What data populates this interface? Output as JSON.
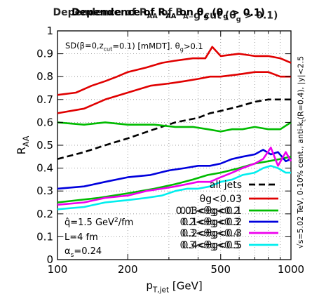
{
  "chart_data": {
    "type": "line",
    "title_parts": [
      "Dependence of R",
      "AA",
      " on θ",
      "g",
      " (θ",
      "g",
      " > 0.1)"
    ],
    "title_overlay_parts": [
      "Dependence of R",
      "AA",
      " of B",
      "A",
      "₋",
      "g",
      " cut (θ",
      "g",
      " > 0.1)"
    ],
    "xlabel": {
      "main": "p",
      "sub": "T,jet",
      "rest": " [GeV]"
    },
    "ylabel": {
      "main": "R",
      "sub": "AA"
    },
    "xscale": "log",
    "xlim": [
      100,
      1000
    ],
    "ylim": [
      0,
      1
    ],
    "xticks": [
      100,
      200,
      500,
      1000
    ],
    "xtick_labels": [
      "100",
      "200",
      "500",
      "1000"
    ],
    "yticks": [
      0,
      0.1,
      0.2,
      0.3,
      0.4,
      0.5,
      0.6,
      0.7,
      0.8,
      0.9,
      1
    ],
    "ytick_labels": [
      "0",
      "0.1",
      "0.2",
      "0.3",
      "0.4",
      "0.5",
      "0.6",
      "0.7",
      "0.8",
      "0.9",
      "1"
    ],
    "grid": true,
    "grouper_label": {
      "pre": "SD(β=0,z",
      "sub": "cut",
      "post": "=0.1) [mMDT]. θ",
      "sub2": "g",
      "post2": ">0.1"
    },
    "params": [
      {
        "pre": "q̂=1.5 GeV",
        "sup": "2",
        "post": "/fm"
      },
      {
        "pre": "L=4 fm",
        "sup": "",
        "post": ""
      },
      {
        "pre": "α",
        "sub": "s",
        "post": "=0.24"
      }
    ],
    "side_label": "√s=5.02 TeV, 0-10% cent., anti-k",
    "side_label_sub": "t",
    "side_label_post": "(R=0.4), |y|<2.5",
    "legend_position": "bottom-right",
    "legend": [
      {
        "label": "all jets",
        "color": "#000000",
        "dashed": true
      },
      {
        "label": "θg<0.03",
        "color": "#e00000",
        "dashed": false
      },
      {
        "label": "0.03<θg<0.1",
        "overlay": "0.1<θg<0.2",
        "color": "#00bb00",
        "dashed": false
      },
      {
        "label": "0.1<θg<0.2",
        "overlay": "0.2<θg<0.3",
        "color": "#0000dd",
        "dashed": false
      },
      {
        "label": "0.2<θg<0.3",
        "overlay": "0.3<θg<0.4",
        "color": "#ee00ee",
        "dashed": false
      },
      {
        "label": "0.4<θg<0.5",
        "overlay": "0.3<θg<0.5",
        "color": "#00eeee",
        "dashed": false
      }
    ],
    "series": [
      {
        "color": "#000000",
        "dashed": true,
        "x": [
          100,
          130,
          160,
          200,
          260,
          320,
          400,
          450,
          500,
          600,
          700,
          800,
          900,
          1000
        ],
        "y": [
          0.44,
          0.47,
          0.5,
          0.53,
          0.57,
          0.6,
          0.62,
          0.64,
          0.65,
          0.67,
          0.69,
          0.7,
          0.7,
          0.7
        ]
      },
      {
        "color": "#e00000",
        "dashed": false,
        "x": [
          100,
          120,
          140,
          160,
          180,
          200,
          240,
          280,
          320,
          380,
          430,
          460,
          500,
          600,
          700,
          800,
          900,
          1000
        ],
        "y": [
          0.72,
          0.73,
          0.76,
          0.78,
          0.8,
          0.82,
          0.84,
          0.86,
          0.87,
          0.88,
          0.88,
          0.93,
          0.89,
          0.9,
          0.89,
          0.89,
          0.88,
          0.86
        ]
      },
      {
        "color": "#e00000",
        "dashed": false,
        "x": [
          100,
          130,
          160,
          200,
          250,
          300,
          350,
          400,
          450,
          500,
          600,
          700,
          800,
          900,
          1000
        ],
        "y": [
          0.64,
          0.66,
          0.7,
          0.73,
          0.76,
          0.77,
          0.78,
          0.79,
          0.8,
          0.8,
          0.81,
          0.82,
          0.82,
          0.8,
          0.8
        ]
      },
      {
        "color": "#00bb00",
        "dashed": false,
        "x": [
          100,
          130,
          160,
          200,
          260,
          320,
          380,
          440,
          500,
          560,
          620,
          700,
          800,
          900,
          1000
        ],
        "y": [
          0.6,
          0.59,
          0.6,
          0.59,
          0.59,
          0.58,
          0.58,
          0.57,
          0.56,
          0.57,
          0.57,
          0.58,
          0.57,
          0.57,
          0.6
        ]
      },
      {
        "color": "#00bb00",
        "dashed": false,
        "x": [
          100,
          150,
          200,
          260,
          320,
          380,
          440,
          500,
          600,
          700,
          800,
          900,
          1000
        ],
        "y": [
          0.25,
          0.27,
          0.29,
          0.31,
          0.33,
          0.35,
          0.37,
          0.38,
          0.4,
          0.42,
          0.43,
          0.44,
          0.45
        ]
      },
      {
        "color": "#0000dd",
        "dashed": false,
        "x": [
          100,
          130,
          160,
          200,
          250,
          300,
          350,
          400,
          450,
          500,
          560,
          620,
          700,
          760,
          820,
          880,
          950,
          1000
        ],
        "y": [
          0.31,
          0.32,
          0.34,
          0.36,
          0.37,
          0.39,
          0.4,
          0.41,
          0.41,
          0.42,
          0.44,
          0.45,
          0.46,
          0.48,
          0.46,
          0.47,
          0.43,
          0.44
        ]
      },
      {
        "color": "#ee00ee",
        "dashed": false,
        "x": [
          100,
          130,
          160,
          200,
          240,
          280,
          320,
          360,
          400,
          450,
          500,
          560,
          620,
          700,
          760,
          820,
          880,
          950,
          1000
        ],
        "y": [
          0.24,
          0.25,
          0.27,
          0.28,
          0.3,
          0.31,
          0.32,
          0.33,
          0.34,
          0.34,
          0.36,
          0.38,
          0.4,
          0.42,
          0.44,
          0.49,
          0.41,
          0.47,
          0.43
        ]
      },
      {
        "color": "#00eeee",
        "dashed": false,
        "x": [
          100,
          130,
          160,
          200,
          240,
          280,
          320,
          360,
          400,
          450,
          500,
          560,
          620,
          700,
          760,
          820,
          880,
          950,
          1000
        ],
        "y": [
          0.22,
          0.23,
          0.25,
          0.26,
          0.27,
          0.28,
          0.3,
          0.31,
          0.31,
          0.32,
          0.34,
          0.35,
          0.37,
          0.38,
          0.4,
          0.41,
          0.4,
          0.38,
          0.38
        ]
      }
    ]
  }
}
